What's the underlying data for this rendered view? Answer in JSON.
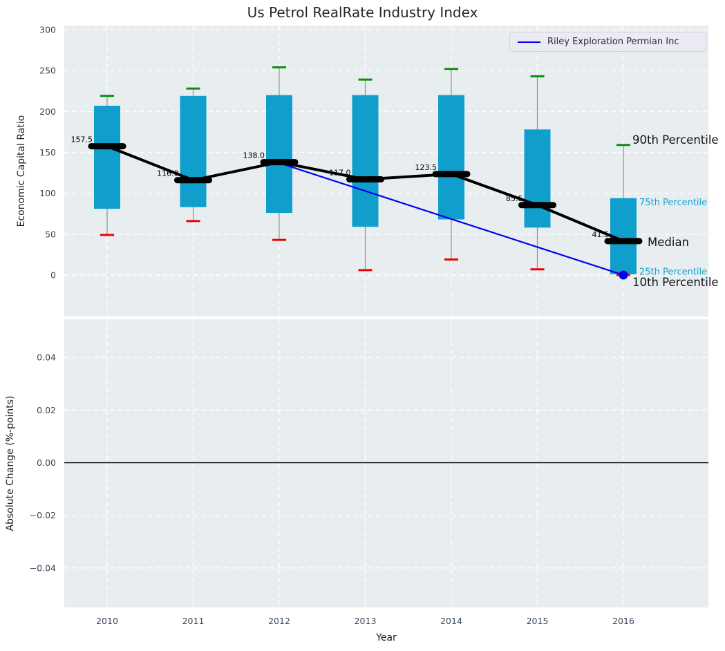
{
  "title": "Us Petrol RealRate Industry Index",
  "colors": {
    "box": "#109ecd",
    "p90_cap": "#0a8f0a",
    "p10_cap": "#ef0000",
    "median": "#000000",
    "company_line": "#0000ee",
    "whisker": "#909090",
    "axes_bg": "#e8edf0",
    "grid": "#ffffff",
    "tick_text": "#36465a",
    "axis_label_text": "#1c1c1c",
    "percentile_text": "#14a3d2",
    "annotation_black": "#111111",
    "zero_line": "#000000"
  },
  "chart_data": [
    {
      "type": "boxplot-fan",
      "panel": "top",
      "title": "Us Petrol RealRate Industry Index",
      "ylabel": "Economic Capital Ratio",
      "xlabel": "Year",
      "grid": true,
      "ylim": [
        -50.7,
        305
      ],
      "yticks": [
        0,
        50,
        100,
        150,
        200,
        250,
        300
      ],
      "ytick_labels": [
        "0",
        "50",
        "100",
        "150",
        "200",
        "250",
        "300"
      ],
      "years": [
        2010,
        2011,
        2012,
        2013,
        2014,
        2015,
        2016
      ],
      "year_labels": [
        "2010",
        "2011",
        "2012",
        "2013",
        "2014",
        "2015",
        "2016"
      ],
      "p90": [
        219,
        228,
        254,
        239,
        252,
        243,
        159
      ],
      "p75": [
        207,
        219,
        220,
        220,
        220,
        178,
        94
      ],
      "median": [
        157.5,
        116.0,
        138.0,
        117.0,
        123.5,
        85.5,
        41.5
      ],
      "p25": [
        81,
        83,
        76,
        59,
        68,
        58,
        1
      ],
      "p10": [
        49,
        66,
        43,
        6,
        19,
        7,
        0
      ],
      "median_labels": [
        "157.5",
        "116.0",
        "138.0",
        "117.0",
        "123.5",
        "85.5",
        "41.5"
      ],
      "series": [
        {
          "name": "Riley Exploration Permian Inc",
          "x": [
            2012,
            2016
          ],
          "y": [
            137,
            0
          ],
          "color": "#0000ee",
          "marker_end": true
        }
      ],
      "legend": {
        "position": "upper right",
        "entries": [
          {
            "label": "Riley Exploration Permian Inc",
            "color": "#0000ee"
          }
        ]
      },
      "annotations": [
        {
          "text": "90th Percentile",
          "anchor": "p90",
          "year": 2016,
          "style": "large-black"
        },
        {
          "text": "75th Percentile",
          "anchor": "p75",
          "year": 2016,
          "style": "small-cyan"
        },
        {
          "text": "Median",
          "anchor": "median",
          "year": 2016,
          "style": "large-black"
        },
        {
          "text": "25th Percentile",
          "anchor": "p25",
          "year": 2016,
          "style": "small-cyan"
        },
        {
          "text": "10th Percentile",
          "anchor": "p10",
          "year": 2016,
          "style": "large-black"
        }
      ]
    },
    {
      "type": "line",
      "panel": "bottom",
      "ylabel": "Absolute Change (%-points)",
      "xlabel": "Year",
      "grid": true,
      "ylim": [
        -0.055,
        0.0545
      ],
      "yticks": [
        0.04,
        0.02,
        0.0,
        -0.02,
        -0.04
      ],
      "ytick_labels": [
        "0.04",
        "0.02",
        "0.00",
        "−0.02",
        "−0.04"
      ],
      "zero_line": true,
      "series": []
    }
  ]
}
